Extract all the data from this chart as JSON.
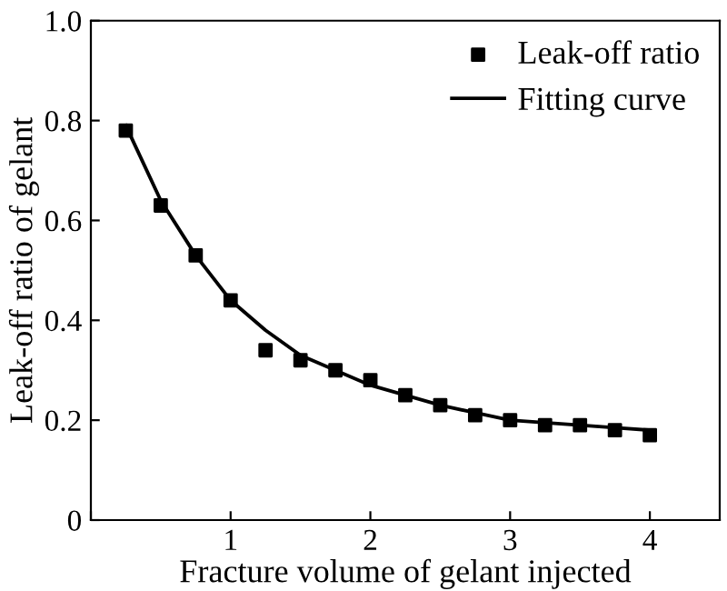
{
  "chart_data": {
    "type": "scatter",
    "xlabel": "Fracture volume of gelant injected",
    "ylabel": "Leak-off ratio of gelant",
    "series": [
      {
        "name": "Leak-off ratio",
        "color": "#000000",
        "marker": "square",
        "x": [
          0.25,
          0.5,
          0.75,
          1,
          1.25,
          1.5,
          1.75,
          2,
          2.25,
          2.5,
          2.75,
          3,
          3.25,
          3.5,
          3.75,
          4
        ],
        "values": [
          0.78,
          0.63,
          0.53,
          0.44,
          0.34,
          0.32,
          0.3,
          0.28,
          0.25,
          0.23,
          0.21,
          0.2,
          0.19,
          0.19,
          0.18,
          0.17
        ]
      },
      {
        "name": "Fitting curve",
        "type": "line",
        "color": "#000000",
        "line_style": "solid",
        "x": [
          0.25,
          0.5,
          0.75,
          1,
          1.25,
          1.5,
          1.75,
          2,
          2.25,
          2.5,
          2.75,
          3,
          3.25,
          3.5,
          3.75,
          4
        ],
        "values": [
          0.79,
          0.64,
          0.53,
          0.44,
          0.38,
          0.33,
          0.3,
          0.27,
          0.25,
          0.23,
          0.215,
          0.2,
          0.195,
          0.19,
          0.185,
          0.18
        ]
      }
    ],
    "xlim": [
      0,
      4.5
    ],
    "xticks": [
      {
        "value": 0,
        "label": null
      },
      1,
      2,
      3,
      4
    ],
    "ylim": [
      0,
      1
    ],
    "yticks": [
      0,
      0.2,
      0.4,
      0.6,
      0.8,
      {
        "value": 1,
        "label": "1.0"
      }
    ],
    "legend": "top right",
    "grid": false
  }
}
